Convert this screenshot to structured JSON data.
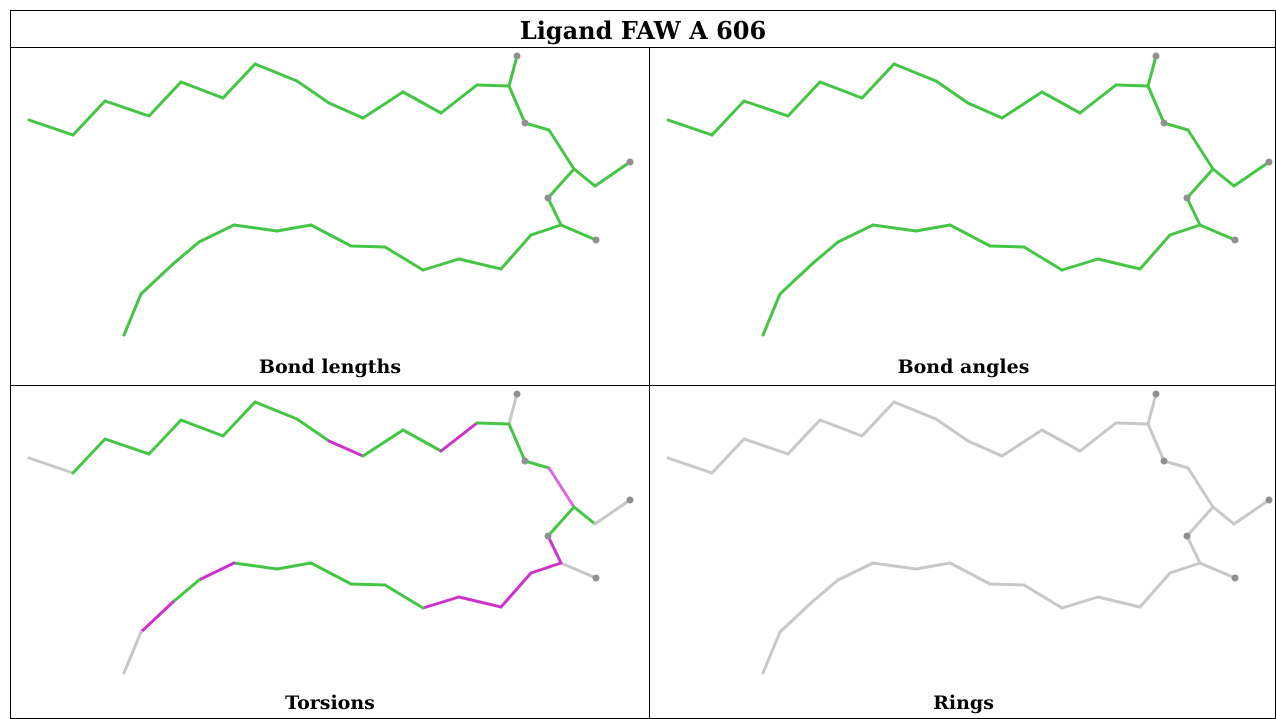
{
  "header": {
    "title": "Ligand FAW A 606"
  },
  "panels": [
    {
      "key": "bond_lengths",
      "caption": "Bond lengths",
      "style": "green"
    },
    {
      "key": "bond_angles",
      "caption": "Bond angles",
      "style": "green"
    },
    {
      "key": "torsions",
      "caption": "Torsions",
      "style": "torsion"
    },
    {
      "key": "rings",
      "caption": "Rings",
      "style": "gray"
    }
  ],
  "colors": {
    "good": "#44c644",
    "good_dark": "#2e9a2e",
    "outlier": "#cc33cc",
    "outlier_light": "#e066e0",
    "inactive": "#c8c8c8",
    "atom": "#909090",
    "border": "#000000"
  }
}
